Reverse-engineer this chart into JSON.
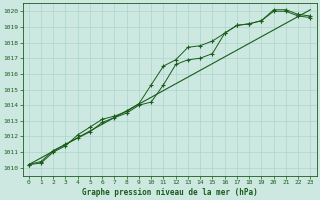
{
  "title": "Graphe pression niveau de la mer (hPa)",
  "bg_color": "#cce8e0",
  "grid_color": "#aad4cc",
  "line_color": "#1a5c1a",
  "xlim": [
    -0.5,
    23.5
  ],
  "ylim": [
    1009.5,
    1020.5
  ],
  "xticks": [
    0,
    1,
    2,
    3,
    4,
    5,
    6,
    7,
    8,
    9,
    10,
    11,
    12,
    13,
    14,
    15,
    16,
    17,
    18,
    19,
    20,
    21,
    22,
    23
  ],
  "yticks": [
    1010,
    1011,
    1012,
    1013,
    1014,
    1015,
    1016,
    1017,
    1018,
    1019,
    1020
  ],
  "series1_x": [
    0,
    1,
    2,
    3,
    4,
    5,
    6,
    7,
    8,
    9,
    10,
    11,
    12,
    13,
    14,
    15,
    16,
    17,
    18,
    19,
    20,
    21,
    22,
    23
  ],
  "series1_y": [
    1010.2,
    1010.3,
    1011.0,
    1011.4,
    1012.1,
    1012.6,
    1013.1,
    1013.3,
    1013.6,
    1014.1,
    1015.3,
    1016.5,
    1016.9,
    1017.7,
    1017.8,
    1018.1,
    1018.6,
    1019.1,
    1019.2,
    1019.4,
    1020.1,
    1020.1,
    1019.8,
    1019.7
  ],
  "series2_x": [
    0,
    1,
    2,
    3,
    4,
    5,
    6,
    7,
    8,
    9,
    10,
    11,
    12,
    13,
    14,
    15,
    16,
    17,
    18,
    19,
    20,
    21,
    22,
    23
  ],
  "series2_y": [
    1010.2,
    1010.4,
    1011.1,
    1011.5,
    1011.9,
    1012.3,
    1012.9,
    1013.2,
    1013.5,
    1014.0,
    1014.2,
    1015.3,
    1016.6,
    1016.9,
    1017.0,
    1017.3,
    1018.6,
    1019.1,
    1019.2,
    1019.4,
    1020.0,
    1020.0,
    1019.7,
    1019.6
  ],
  "series3_x": [
    0,
    23
  ],
  "series3_y": [
    1010.2,
    1020.1
  ]
}
